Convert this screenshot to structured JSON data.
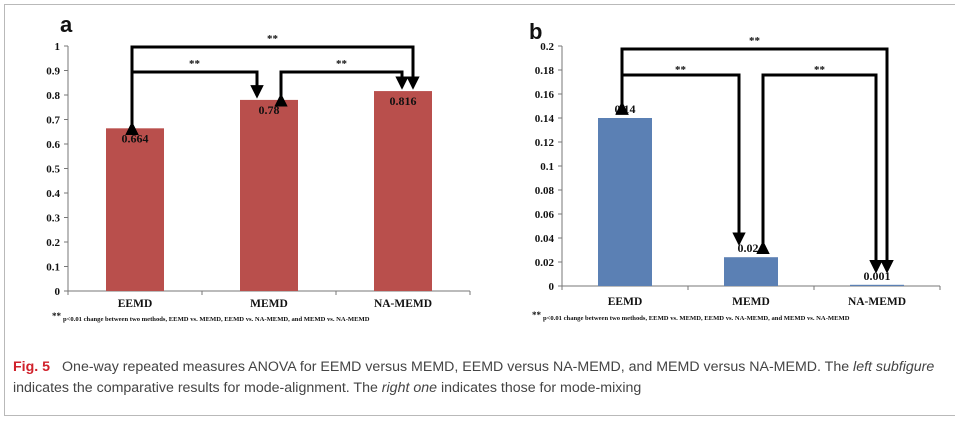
{
  "caption": {
    "label": "Fig. 5",
    "parts": [
      {
        "text": "One-way repeated measures ANOVA for EEMD versus MEMD, EEMD versus NA-MEMD, and MEMD versus NA-MEMD. The ",
        "italic": false
      },
      {
        "text": "left subfigure",
        "italic": true
      },
      {
        "text": " indicates the comparative results for mode-alignment. The ",
        "italic": false
      },
      {
        "text": "right one",
        "italic": true
      },
      {
        "text": " indicates those for mode-mixing",
        "italic": false
      }
    ]
  },
  "chart_data": [
    {
      "panel": "a",
      "type": "bar",
      "categories": [
        "EEMD",
        "MEMD",
        "NA-MEMD"
      ],
      "values": [
        0.664,
        0.78,
        0.816
      ],
      "value_labels": [
        "0.664",
        "0.78",
        "0.816"
      ],
      "ylim": [
        0,
        1
      ],
      "yticks": [
        "0",
        "0.1",
        "0.2",
        "0.3",
        "0.4",
        "0.5",
        "0.6",
        "0.7",
        "0.8",
        "0.9",
        "1"
      ],
      "bar_color": "#b94f4c",
      "grid": false,
      "significance": [
        {
          "pair": [
            "EEMD",
            "NA-MEMD"
          ],
          "label": "**"
        },
        {
          "pair": [
            "EEMD",
            "MEMD"
          ],
          "label": "**"
        },
        {
          "pair": [
            "MEMD",
            "NA-MEMD"
          ],
          "label": "**"
        }
      ],
      "footnote_mark": "**",
      "footnote": "p<0.01 change between two methods,  EEMD vs. MEMD, EEMD vs. NA-MEMD, and MEMD vs. NA-MEMD"
    },
    {
      "panel": "b",
      "type": "bar",
      "categories": [
        "EEMD",
        "MEMD",
        "NA-MEMD"
      ],
      "values": [
        0.14,
        0.024,
        0.001
      ],
      "value_labels": [
        "0.14",
        "0.024",
        "0.001"
      ],
      "ylim": [
        0,
        0.2
      ],
      "yticks": [
        "0",
        "0.02",
        "0.04",
        "0.06",
        "0.08",
        "0.1",
        "0.12",
        "0.14",
        "0.16",
        "0.18",
        "0.2"
      ],
      "bar_color": "#5b80b4",
      "grid": false,
      "significance": [
        {
          "pair": [
            "EEMD",
            "NA-MEMD"
          ],
          "label": "**"
        },
        {
          "pair": [
            "EEMD",
            "MEMD"
          ],
          "label": "**"
        },
        {
          "pair": [
            "MEMD",
            "NA-MEMD"
          ],
          "label": "**"
        }
      ],
      "footnote_mark": "**",
      "footnote": "p<0.01 change between two methods,  EEMD vs. MEMD, EEMD vs. NA-MEMD, and MEMD vs. NA-MEMD"
    }
  ]
}
